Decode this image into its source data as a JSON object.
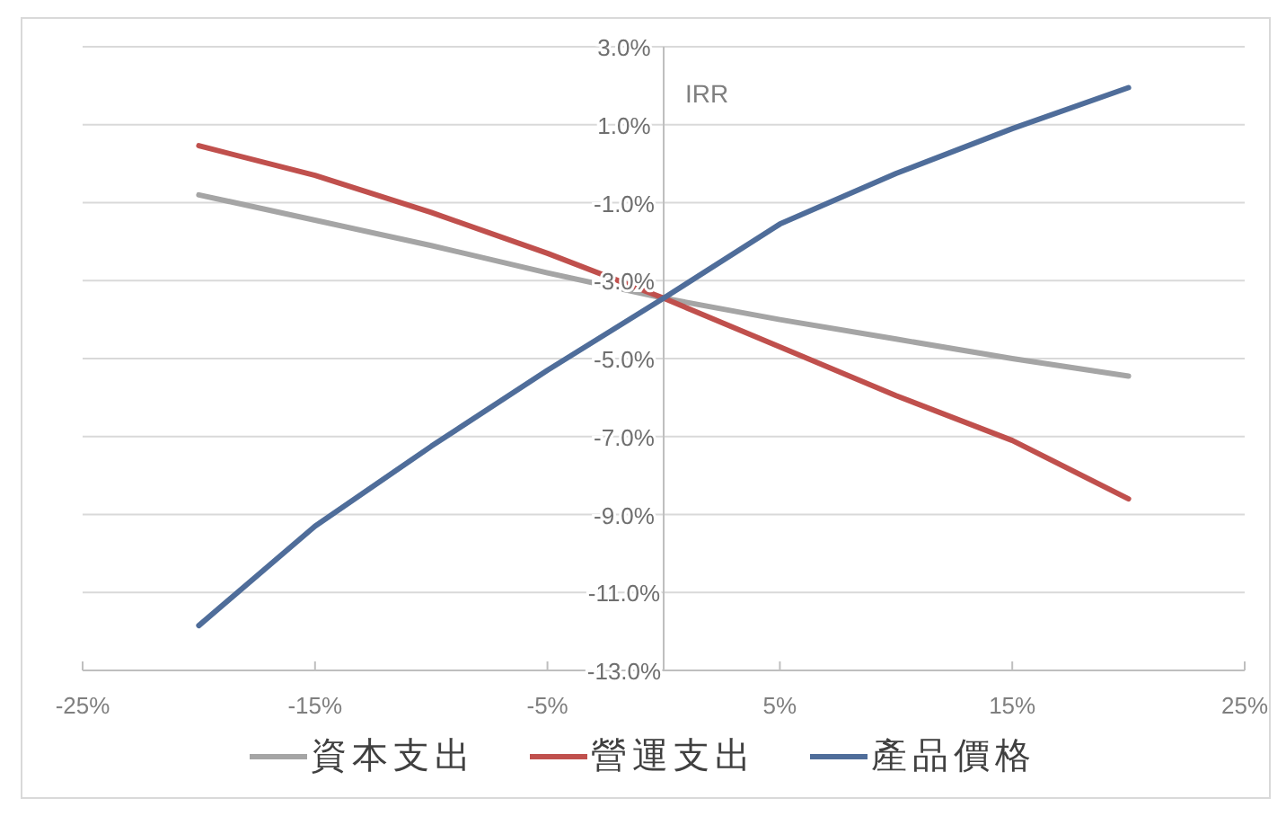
{
  "chart_data": {
    "type": "line",
    "ylabel": "IRR",
    "x": [
      -20,
      -15,
      -10,
      -5,
      0,
      5,
      10,
      15,
      20
    ],
    "series": [
      {
        "name": "資本支出",
        "color": "#a5a5a5",
        "values": [
          -0.8,
          -1.45,
          -2.1,
          -2.8,
          -3.45,
          -4.0,
          -4.5,
          -5.0,
          -5.45
        ]
      },
      {
        "name": "營運支出",
        "color": "#c0504d",
        "values": [
          0.46,
          -0.3,
          -1.25,
          -2.3,
          -3.45,
          -4.7,
          -5.95,
          -7.1,
          -8.6
        ]
      },
      {
        "name": "產品價格",
        "color": "#4f6d9a",
        "values": [
          -11.85,
          -9.3,
          -7.25,
          -5.3,
          -3.45,
          -1.55,
          -0.25,
          0.9,
          1.95
        ]
      }
    ],
    "xlim": [
      -25,
      25
    ],
    "xticks": [
      {
        "value": -25,
        "label": "-25%"
      },
      {
        "value": -15,
        "label": "-15%"
      },
      {
        "value": -5,
        "label": "-5%"
      },
      {
        "value": 5,
        "label": "5%"
      },
      {
        "value": 15,
        "label": "15%"
      },
      {
        "value": 25,
        "label": "25%"
      }
    ],
    "ylim": [
      -13,
      3
    ],
    "yticks": [
      {
        "value": 3,
        "label": "3.0%"
      },
      {
        "value": 1,
        "label": "1.0%"
      },
      {
        "value": -1,
        "label": "-1.0%"
      },
      {
        "value": -3,
        "label": "-3.0%"
      },
      {
        "value": -5,
        "label": "-5.0%"
      },
      {
        "value": -7,
        "label": "-7.0%"
      },
      {
        "value": -9,
        "label": "-9.0%"
      },
      {
        "value": -11,
        "label": "-11.0%"
      },
      {
        "value": -13,
        "label": "-13.0%"
      }
    ],
    "grid": "y",
    "legend": "bottom",
    "marker": "none",
    "line_style": "solid"
  }
}
